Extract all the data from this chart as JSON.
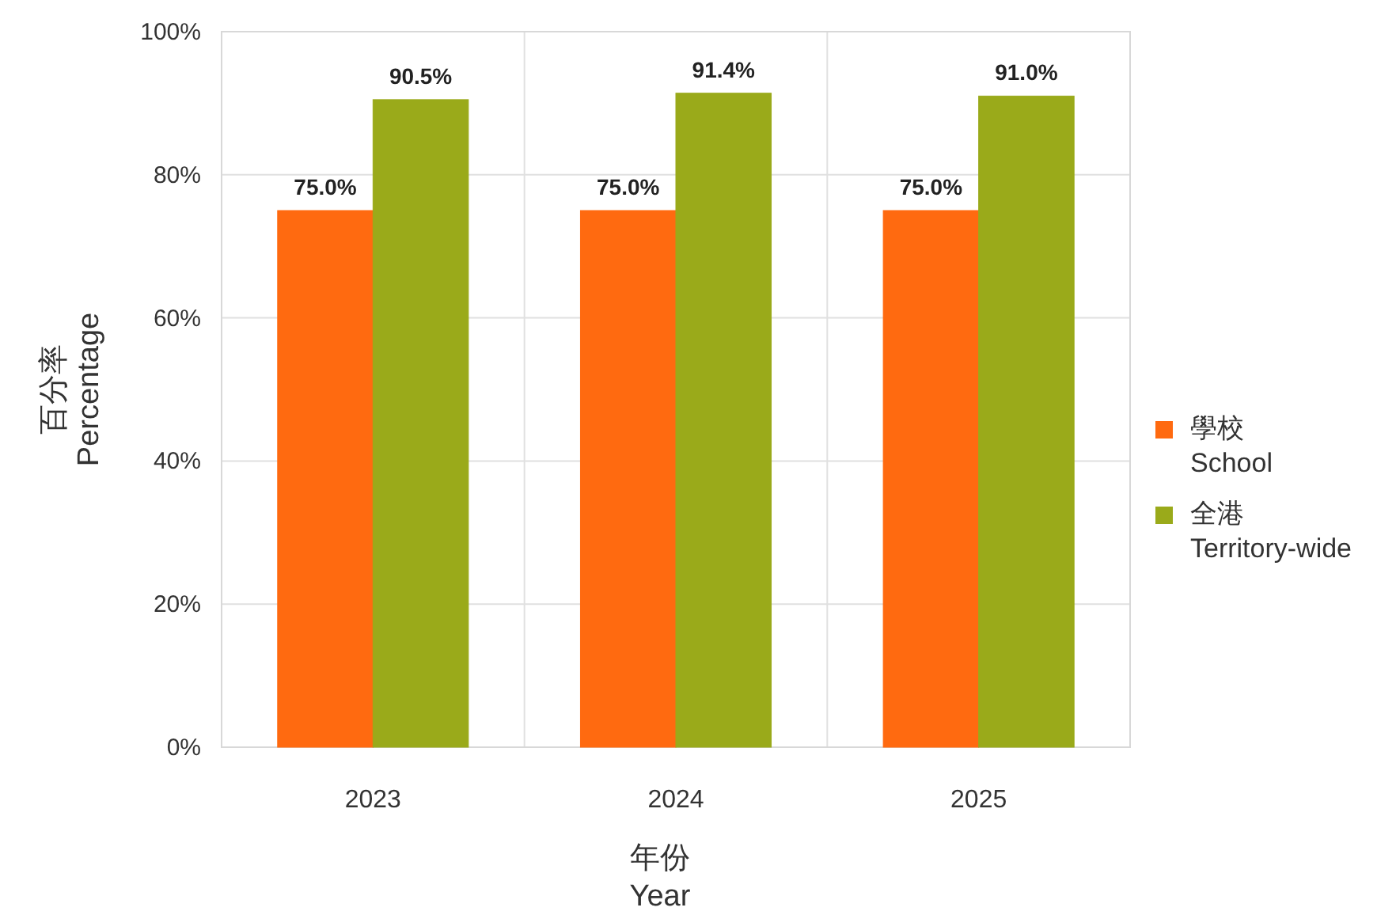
{
  "chart_data": {
    "type": "bar",
    "xlabel": "年份\nYear",
    "ylabel": "百分率\nPercentage",
    "categories": [
      "2023",
      "2024",
      "2025"
    ],
    "series": [
      {
        "name": "學校\nSchool",
        "color": "#ff6a10",
        "values": [
          75.0,
          75.0,
          75.0
        ],
        "value_labels": [
          "75.0%",
          "75.0%",
          "75.0%"
        ]
      },
      {
        "name": "全港\nTerritory-wide",
        "color": "#9aaa1a",
        "values": [
          90.5,
          91.4,
          91.0
        ],
        "value_labels": [
          "90.5%",
          "91.4%",
          "91.0%"
        ]
      }
    ],
    "ylim": [
      0,
      100
    ],
    "yticks": [
      {
        "value": 0,
        "label": "0%"
      },
      {
        "value": 20,
        "label": "20%"
      },
      {
        "value": 40,
        "label": "40%"
      },
      {
        "value": 60,
        "label": "60%"
      },
      {
        "value": 80,
        "label": "80%"
      },
      {
        "value": 100,
        "label": "100%"
      }
    ],
    "grid": true,
    "legend": "right"
  }
}
